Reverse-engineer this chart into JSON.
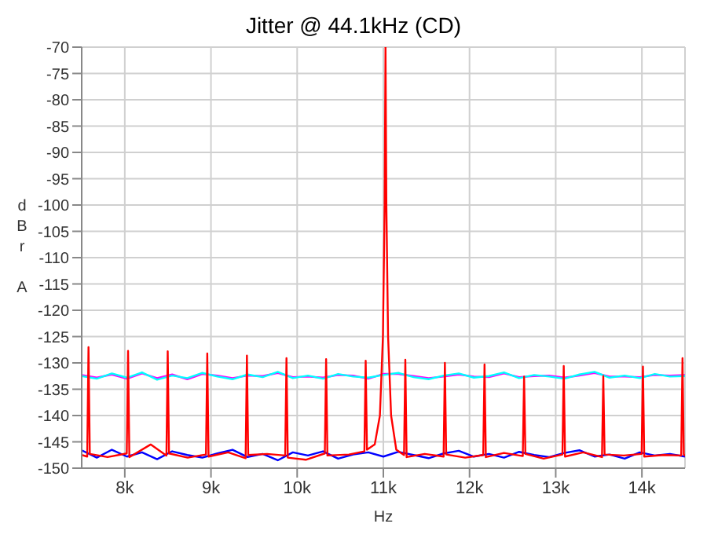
{
  "chart_data": {
    "type": "line",
    "title": "Jitter @ 44.1kHz (CD)",
    "xlabel": "Hz",
    "ylabel": "dBr A",
    "xlim": [
      7500,
      14500
    ],
    "ylim": [
      -150,
      -70
    ],
    "xticks": [
      {
        "value": 8000,
        "label": "8k"
      },
      {
        "value": 9000,
        "label": "9k"
      },
      {
        "value": 10000,
        "label": "10k"
      },
      {
        "value": 11000,
        "label": "11k"
      },
      {
        "value": 12000,
        "label": "12k"
      },
      {
        "value": 13000,
        "label": "13k"
      },
      {
        "value": 14000,
        "label": "14k"
      }
    ],
    "yticks": [
      -150,
      -145,
      -140,
      -135,
      -130,
      -125,
      -120,
      -115,
      -110,
      -105,
      -100,
      -95,
      -90,
      -85,
      -80,
      -75,
      -70
    ],
    "grid": true,
    "marker": "none",
    "line_style": "solid",
    "x": [
      7500,
      7675,
      7850,
      8025,
      8200,
      8375,
      8550,
      8725,
      8900,
      9075,
      9250,
      9425,
      9600,
      9775,
      9950,
      10125,
      10300,
      10475,
      10650,
      10825,
      11000,
      11175,
      11350,
      11525,
      11700,
      11875,
      12050,
      12225,
      12400,
      12575,
      12750,
      12925,
      13100,
      13275,
      13450,
      13625,
      13800,
      13975,
      14150,
      14325,
      14500
    ],
    "series": [
      {
        "color": "#ff00ff",
        "values": [
          -132.3,
          -132.8,
          -132.2,
          -133,
          -132,
          -132.9,
          -132.2,
          -133.1,
          -132.1,
          -132.4,
          -132.9,
          -132.4,
          -132.5,
          -131.9,
          -132.7,
          -132.6,
          -132.8,
          -132.3,
          -132.4,
          -133,
          -132.1,
          -132.1,
          -132.5,
          -132.9,
          -132.6,
          -132.2,
          -132.6,
          -132.7,
          -132,
          -132.7,
          -132.5,
          -132.4,
          -132.8,
          -132.4,
          -131.9,
          -132.6,
          -132.6,
          -132.7,
          -132.3,
          -132.4,
          -132.3
        ]
      },
      {
        "color": "#00ffff",
        "values": [
          -132.5,
          -133,
          -132,
          -132.8,
          -131.8,
          -133.2,
          -132.4,
          -132.9,
          -131.9,
          -132.6,
          -133.1,
          -132.2,
          -132.7,
          -131.7,
          -132.9,
          -132.4,
          -133,
          -132.1,
          -132.6,
          -132.8,
          -132.3,
          -131.9,
          -132.7,
          -133.1,
          -132.4,
          -132,
          -132.8,
          -132.5,
          -131.8,
          -132.9,
          -132.3,
          -132.6,
          -133,
          -132.2,
          -131.7,
          -132.8,
          -132.4,
          -132.9,
          -132.1,
          -132.6,
          -132.5
        ]
      },
      {
        "color": "#0000ff",
        "values": [
          -146.6,
          -148,
          -146.5,
          -147.8,
          -147,
          -148.3,
          -146.8,
          -147.5,
          -148,
          -147.2,
          -146.5,
          -147.9,
          -147.3,
          -148.5,
          -147,
          -147.6,
          -146.8,
          -148.2,
          -147.4,
          -147,
          -147.8,
          -146.9,
          -147.5,
          -148.1,
          -147.2,
          -146.7,
          -147.8,
          -147.3,
          -148,
          -146.9,
          -147.5,
          -147.9,
          -147.1,
          -146.6,
          -147.8,
          -147.4,
          -148.2,
          -147,
          -147.6,
          -147.3,
          -147.8
        ]
      },
      {
        "color": "#ff0000",
        "x": [
          7500,
          7564,
          7579,
          7594,
          7800,
          8023,
          8038,
          8053,
          8300,
          8483,
          8498,
          8513,
          8730,
          8942,
          8957,
          8972,
          9200,
          9402,
          9417,
          9432,
          9650,
          9861,
          9876,
          9891,
          10100,
          10321,
          10336,
          10351,
          10600,
          10780,
          10795,
          10810,
          10900,
          10960,
          10995,
          11015,
          11025,
          11035,
          11055,
          11090,
          11150,
          11240,
          11255,
          11270,
          11480,
          11699,
          11714,
          11729,
          11950,
          12159,
          12174,
          12189,
          12400,
          12618,
          12633,
          12648,
          12860,
          13078,
          13093,
          13108,
          13320,
          13537,
          13552,
          13567,
          13790,
          13997,
          14012,
          14027,
          14250,
          14456,
          14471,
          14486,
          14500
        ],
        "values": [
          -147.5,
          -147.8,
          -127,
          -147.3,
          -147.9,
          -147.2,
          -127.7,
          -147.9,
          -145.5,
          -147.6,
          -127.8,
          -147.2,
          -148,
          -147.4,
          -128.2,
          -147.8,
          -147,
          -148.1,
          -128.6,
          -147.5,
          -147.3,
          -147.6,
          -129.1,
          -148,
          -148.4,
          -147.2,
          -129.3,
          -147.6,
          -147.4,
          -146.8,
          -129.6,
          -146.5,
          -145.5,
          -140,
          -125,
          -100,
          -70,
          -100,
          -125,
          -140,
          -146.5,
          -147.5,
          -129.4,
          -147.9,
          -147.3,
          -147.8,
          -130,
          -147.4,
          -148,
          -147.5,
          -130.3,
          -147.9,
          -147.1,
          -147.7,
          -132.6,
          -147.3,
          -148.2,
          -147.4,
          -130.6,
          -147.8,
          -147,
          -147.9,
          -132.5,
          -147.4,
          -147.6,
          -147.3,
          -130.7,
          -147.8,
          -147.5,
          -147.6,
          -129.1,
          -147.4,
          -147.7
        ]
      }
    ]
  }
}
